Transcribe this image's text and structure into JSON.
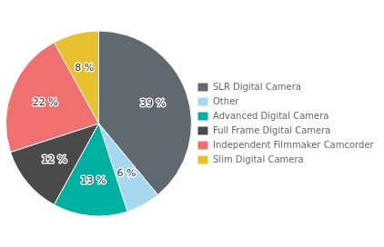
{
  "chart_data": {
    "type": "pie",
    "categories": [
      "SLR Digital Camera",
      "Other",
      "Advanced Digital Camera",
      "Full Frame Digital Camera",
      "Independent Filmmaker Camcorder",
      "Slim Digital Camera"
    ],
    "values": [
      39,
      6,
      13,
      12,
      22,
      8
    ],
    "value_labels": [
      "39 %",
      "6 %",
      "13 %",
      "12 %",
      "22 %",
      "8 %"
    ],
    "colors": [
      "#606870",
      "#A8D8F0",
      "#00B0A0",
      "#4A4A4A",
      "#F07070",
      "#E8C030"
    ],
    "data_labels": true,
    "legend": "right"
  }
}
